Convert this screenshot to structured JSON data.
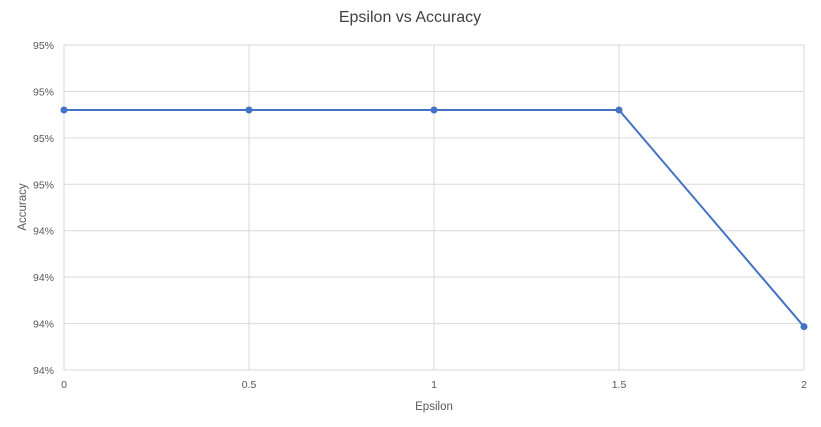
{
  "chart_data": {
    "type": "line",
    "title": "Epsilon vs Accuracy",
    "xlabel": "Epsilon",
    "ylabel": "Accuracy",
    "x": [
      0,
      0.5,
      1,
      1.5,
      2
    ],
    "series": [
      {
        "values": [
          0.9505,
          0.9505,
          0.9505,
          0.9505,
          0.9405
        ]
      }
    ],
    "x_ticks": [
      "0",
      "0.5",
      "1",
      "1.5",
      "2"
    ],
    "y_tick_labels": [
      "95%",
      "95%",
      "95%",
      "95%",
      "94%",
      "94%",
      "94%",
      "94%"
    ],
    "xlim": [
      0,
      2
    ],
    "ylim": [
      0.9385,
      0.9535
    ],
    "grid": true,
    "legend": "none",
    "colors": {
      "line": "#4472c4",
      "grid": "#d9d9d9",
      "text": "#595959",
      "title": "#404040"
    }
  }
}
